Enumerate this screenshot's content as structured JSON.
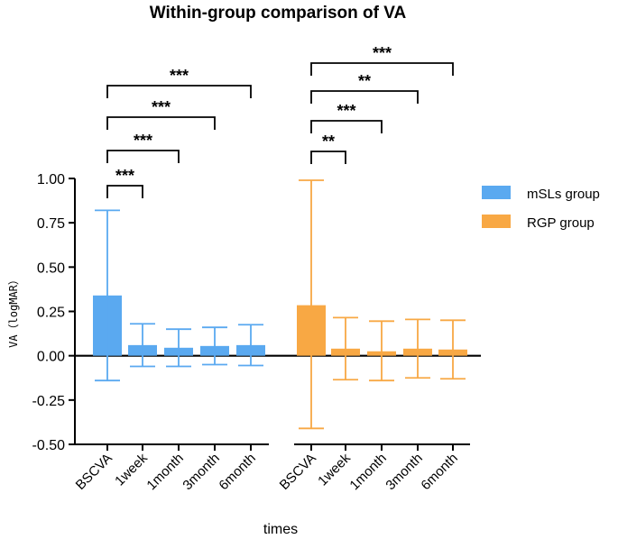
{
  "chart_data": {
    "type": "bar",
    "title": "Within-group comparison of VA",
    "xlabel": "times",
    "ylabel": "VA（logMAR）",
    "ylim": [
      -0.5,
      1.0
    ],
    "yticks": [
      "1.00",
      "0.75",
      "0.50",
      "0.25",
      "0.00",
      "-0.25",
      "-0.50"
    ],
    "ytick_values": [
      1.0,
      0.75,
      0.5,
      0.25,
      0.0,
      -0.25,
      -0.5
    ],
    "legend_position": "top-right",
    "series": [
      {
        "name": "mSLs group",
        "color": "#5aa9f0",
        "categories": [
          "BSCVA",
          "1week",
          "1month",
          "3month",
          "6month"
        ],
        "values": [
          0.34,
          0.06,
          0.045,
          0.055,
          0.06
        ],
        "error_upper": [
          0.82,
          0.18,
          0.15,
          0.16,
          0.175
        ],
        "error_lower": [
          -0.14,
          -0.06,
          -0.06,
          -0.05,
          -0.055
        ]
      },
      {
        "name": "RGP group",
        "color": "#f8a844",
        "categories": [
          "BSCVA",
          "1week",
          "1month",
          "3month",
          "6month"
        ],
        "values": [
          0.285,
          0.04,
          0.025,
          0.04,
          0.035
        ],
        "error_upper": [
          0.99,
          0.215,
          0.195,
          0.205,
          0.2
        ],
        "error_lower": [
          -0.41,
          -0.135,
          -0.14,
          -0.125,
          -0.13
        ]
      }
    ],
    "significance": [
      {
        "series": 0,
        "from": 0,
        "to": 1,
        "label": "***"
      },
      {
        "series": 0,
        "from": 0,
        "to": 2,
        "label": "***"
      },
      {
        "series": 0,
        "from": 0,
        "to": 3,
        "label": "***"
      },
      {
        "series": 0,
        "from": 0,
        "to": 4,
        "label": "***"
      },
      {
        "series": 1,
        "from": 0,
        "to": 1,
        "label": "**"
      },
      {
        "series": 1,
        "from": 0,
        "to": 2,
        "label": "***"
      },
      {
        "series": 1,
        "from": 0,
        "to": 3,
        "label": "**"
      },
      {
        "series": 1,
        "from": 0,
        "to": 4,
        "label": "***"
      }
    ]
  }
}
